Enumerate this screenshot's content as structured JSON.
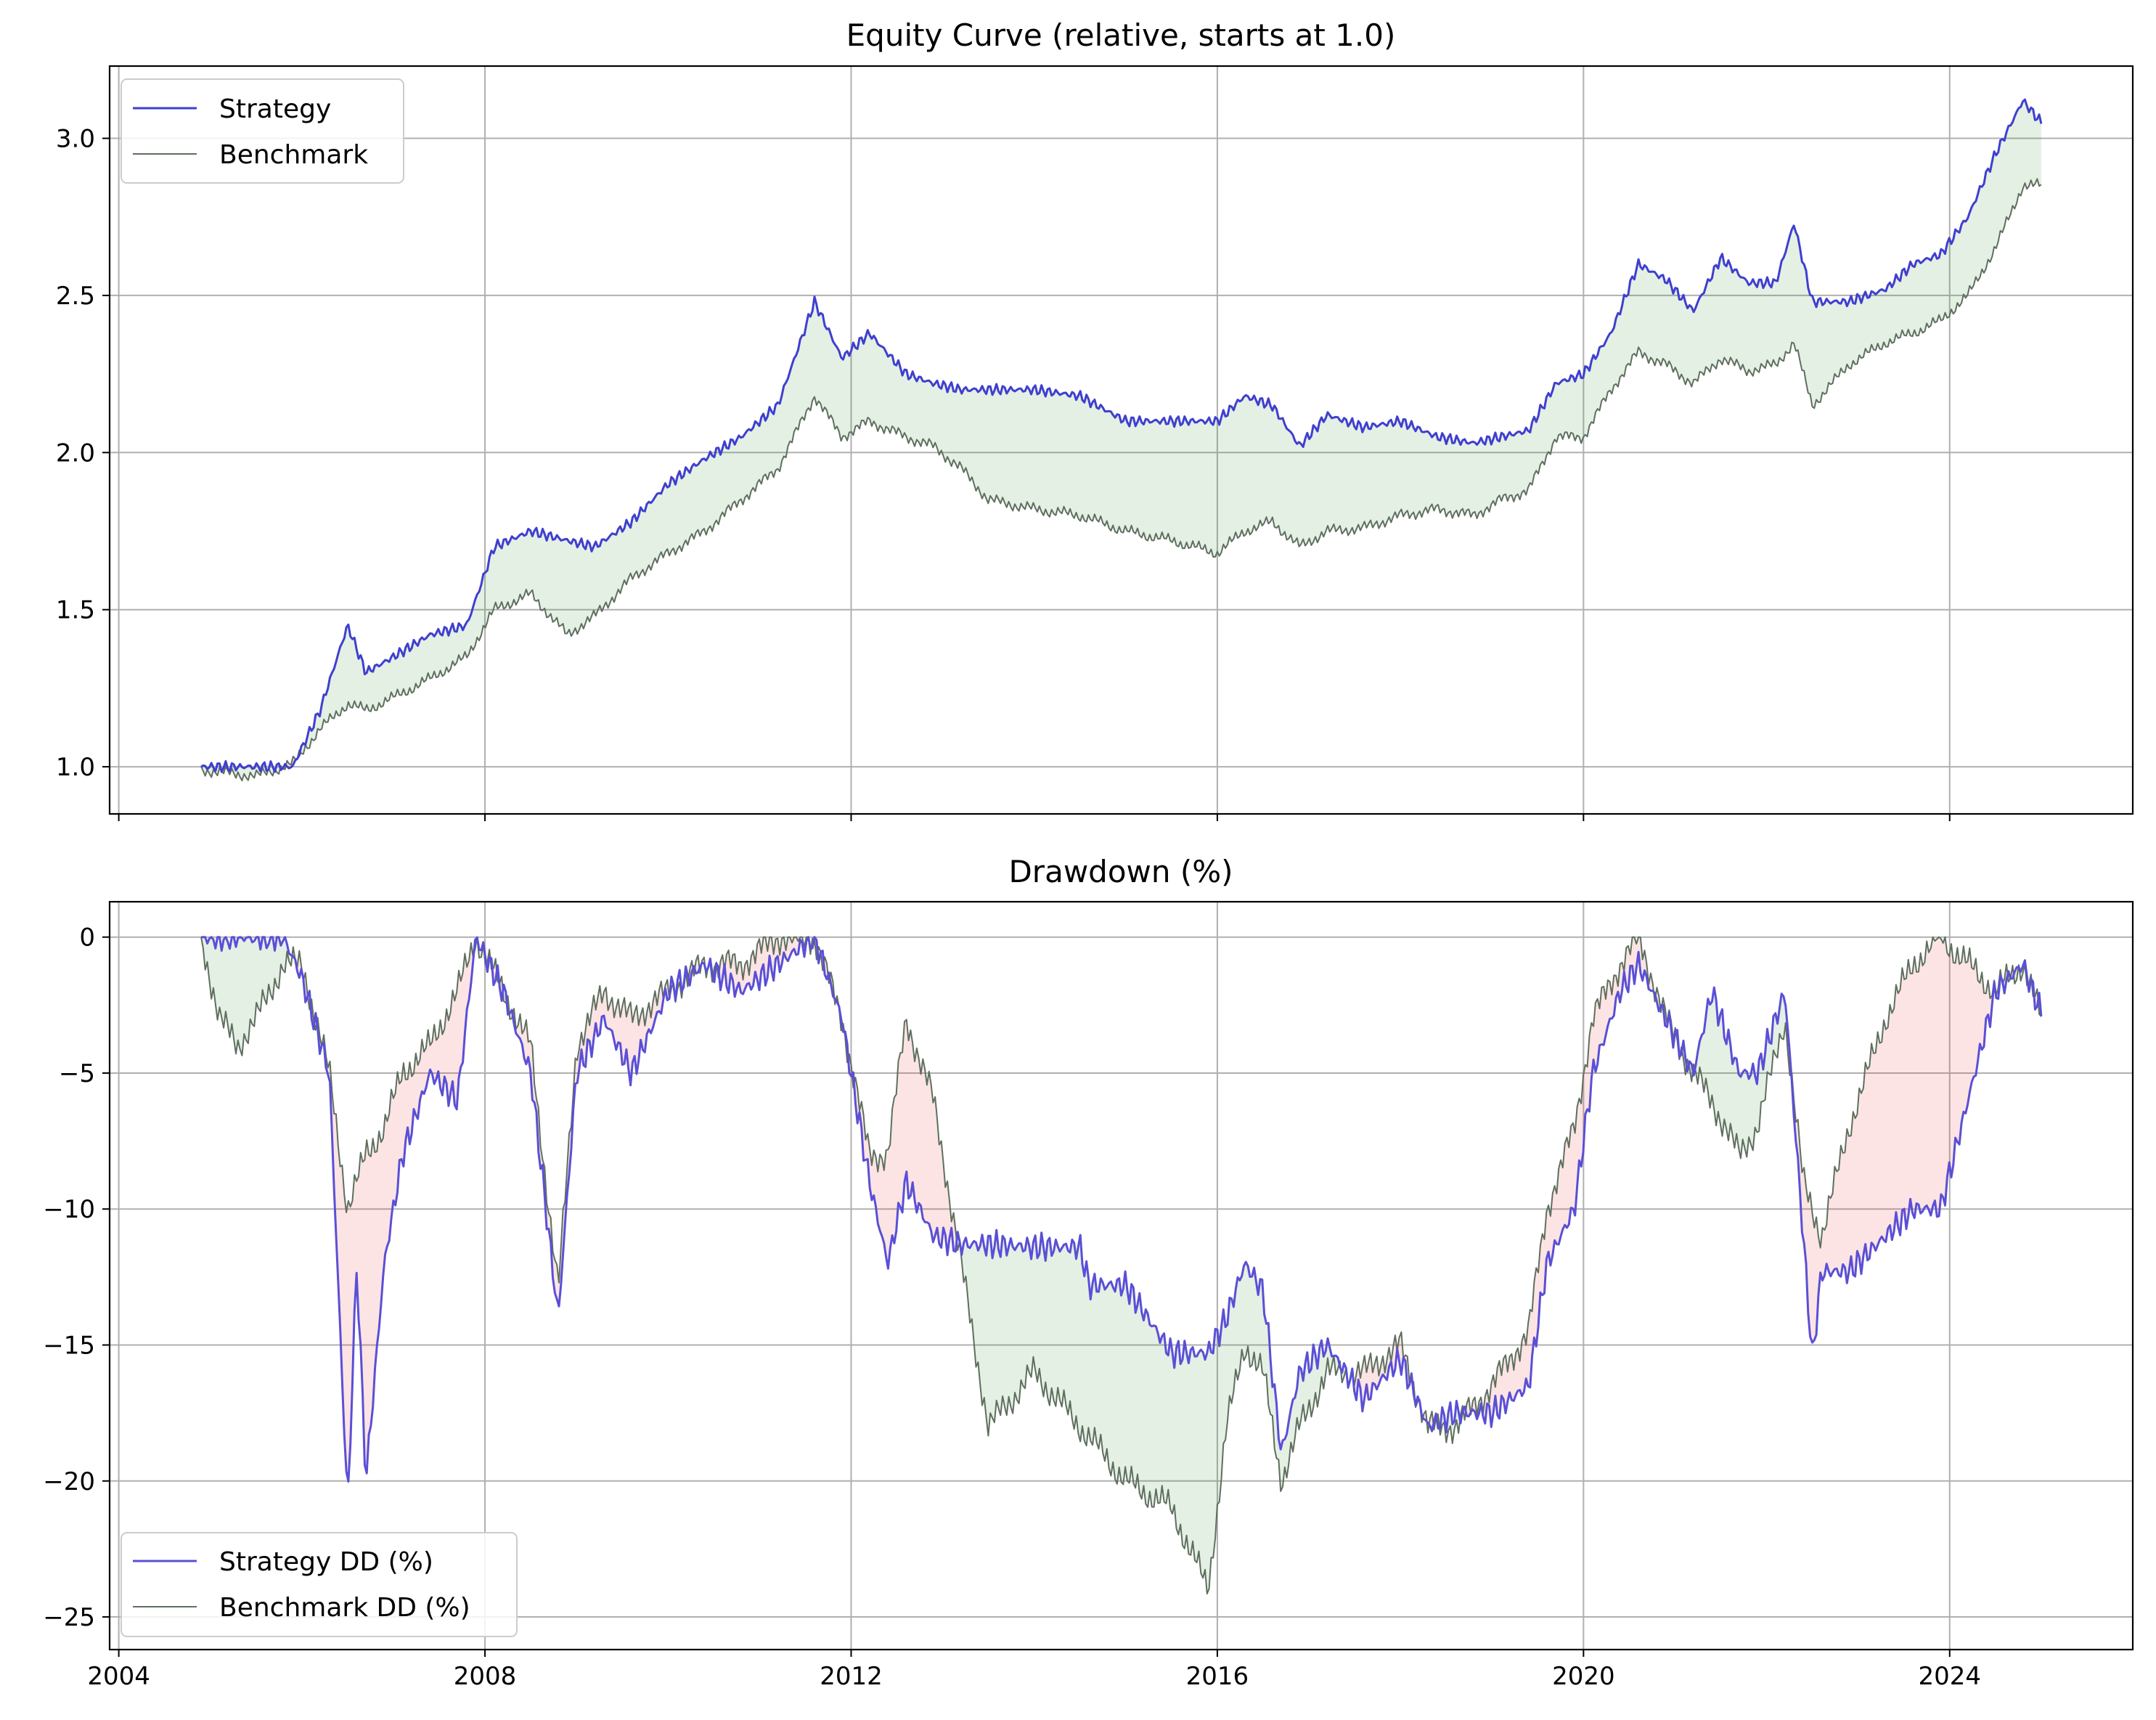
{
  "chart_data": [
    {
      "type": "line",
      "title": "Equity Curve (relative, starts at 1.0)",
      "xlim": [
        2003.9,
        2026.0
      ],
      "ylim": [
        0.85,
        3.23
      ],
      "grid": true,
      "legend_position": "top-left",
      "x_ticks": [
        2004,
        2008,
        2012,
        2016,
        2020,
        2024
      ],
      "y_ticks": [
        1.0,
        1.5,
        2.0,
        2.5,
        3.0
      ],
      "y_tick_labels": [
        "1.0",
        "1.5",
        "2.0",
        "2.5",
        "3.0"
      ],
      "series": [
        {
          "name": "Strategy",
          "color": "#3f3fcf",
          "x": [
            2004.9,
            2005.5,
            2005.9,
            2006.2,
            2006.5,
            2006.7,
            2007.0,
            2007.4,
            2007.8,
            2008.1,
            2008.5,
            2008.9,
            2009.2,
            2009.6,
            2010.0,
            2010.4,
            2010.8,
            2011.2,
            2011.6,
            2011.9,
            2012.2,
            2012.6,
            2012.9,
            2013.2,
            2013.5,
            2014.0,
            2014.5,
            2015.0,
            2015.5,
            2016.0,
            2016.3,
            2016.6,
            2016.9,
            2017.2,
            2017.6,
            2018.0,
            2018.4,
            2018.8,
            2019.1,
            2019.4,
            2019.7,
            2020.0,
            2020.3,
            2020.6,
            2020.9,
            2021.2,
            2021.5,
            2021.8,
            2022.1,
            2022.3,
            2022.5,
            2022.9,
            2023.3,
            2023.6,
            2023.9,
            2024.2,
            2024.5,
            2024.8,
            2025.0
          ],
          "y": [
            1.0,
            1.0,
            1.0,
            1.18,
            1.45,
            1.3,
            1.35,
            1.42,
            1.45,
            1.7,
            1.75,
            1.72,
            1.7,
            1.78,
            1.9,
            1.98,
            2.05,
            2.15,
            2.48,
            2.3,
            2.38,
            2.25,
            2.22,
            2.2,
            2.2,
            2.2,
            2.18,
            2.1,
            2.1,
            2.1,
            2.18,
            2.15,
            2.02,
            2.12,
            2.08,
            2.1,
            2.05,
            2.03,
            2.05,
            2.07,
            2.22,
            2.25,
            2.38,
            2.6,
            2.55,
            2.45,
            2.62,
            2.54,
            2.54,
            2.73,
            2.48,
            2.48,
            2.52,
            2.6,
            2.63,
            2.75,
            2.95,
            3.12,
            3.05
          ]
        },
        {
          "name": "Benchmark",
          "color": "#5f6f5f",
          "x": [
            2004.9,
            2005.5,
            2005.9,
            2006.2,
            2006.5,
            2006.7,
            2007.0,
            2007.4,
            2007.8,
            2008.1,
            2008.5,
            2008.9,
            2009.2,
            2009.6,
            2010.0,
            2010.4,
            2010.8,
            2011.2,
            2011.6,
            2011.9,
            2012.2,
            2012.6,
            2012.9,
            2013.2,
            2013.5,
            2014.0,
            2014.5,
            2015.0,
            2015.5,
            2016.0,
            2016.3,
            2016.6,
            2016.9,
            2017.2,
            2017.6,
            2018.0,
            2018.4,
            2018.8,
            2019.1,
            2019.4,
            2019.7,
            2020.0,
            2020.3,
            2020.6,
            2020.9,
            2021.2,
            2021.5,
            2021.8,
            2022.1,
            2022.3,
            2022.5,
            2022.9,
            2023.3,
            2023.6,
            2023.9,
            2024.2,
            2024.5,
            2024.8,
            2025.0
          ],
          "y": [
            0.99,
            0.97,
            1.01,
            1.12,
            1.2,
            1.18,
            1.22,
            1.28,
            1.35,
            1.5,
            1.55,
            1.42,
            1.48,
            1.6,
            1.68,
            1.75,
            1.85,
            1.95,
            2.18,
            2.05,
            2.1,
            2.05,
            2.02,
            1.95,
            1.85,
            1.82,
            1.8,
            1.75,
            1.72,
            1.68,
            1.75,
            1.78,
            1.7,
            1.75,
            1.76,
            1.8,
            1.82,
            1.8,
            1.85,
            1.88,
            2.05,
            2.05,
            2.2,
            2.32,
            2.28,
            2.22,
            2.3,
            2.26,
            2.28,
            2.35,
            2.15,
            2.28,
            2.35,
            2.38,
            2.42,
            2.5,
            2.65,
            2.85,
            2.85
          ]
        }
      ]
    },
    {
      "type": "line",
      "title": "Drawdown (%)",
      "xlim": [
        2003.9,
        2026.0
      ],
      "ylim": [
        -26.2,
        1.3
      ],
      "grid": true,
      "legend_position": "bottom-left",
      "x_ticks": [
        2004,
        2008,
        2012,
        2016,
        2020,
        2024
      ],
      "x_tick_labels": [
        "2004",
        "2008",
        "2012",
        "2016",
        "2020",
        "2024"
      ],
      "y_ticks": [
        0,
        -5,
        -10,
        -15,
        -20,
        -25
      ],
      "y_tick_labels": [
        "0",
        "−5",
        "−10",
        "−15",
        "−20",
        "−25"
      ],
      "series": [
        {
          "name": "Strategy DD (%)",
          "color": "#5a4fd6",
          "x": [
            2004.9,
            2005.8,
            2006.0,
            2006.3,
            2006.5,
            2006.6,
            2006.7,
            2006.9,
            2007.1,
            2007.4,
            2007.7,
            2007.9,
            2008.2,
            2008.5,
            2008.8,
            2009.0,
            2009.3,
            2009.6,
            2010.0,
            2010.4,
            2010.8,
            2011.2,
            2011.6,
            2011.9,
            2012.2,
            2012.4,
            2012.6,
            2012.9,
            2013.2,
            2013.5,
            2014.0,
            2014.5,
            2014.6,
            2015.0,
            2015.5,
            2015.9,
            2016.1,
            2016.3,
            2016.5,
            2016.7,
            2016.9,
            2017.2,
            2017.6,
            2018.0,
            2018.3,
            2018.6,
            2019.0,
            2019.4,
            2019.6,
            2019.9,
            2020.1,
            2020.4,
            2020.6,
            2020.9,
            2021.2,
            2021.4,
            2021.7,
            2021.9,
            2022.2,
            2022.4,
            2022.5,
            2022.6,
            2022.9,
            2023.3,
            2023.6,
            2023.9,
            2024.2,
            2024.5,
            2024.8,
            2025.0
          ],
          "y": [
            0,
            0,
            -1.5,
            -5,
            -21,
            -12,
            -20,
            -12,
            -8,
            -5,
            -6,
            0,
            -2,
            -5,
            -14,
            -5,
            -3,
            -5,
            -2,
            -1,
            -2,
            -1,
            0,
            -3,
            -9,
            -12,
            -9,
            -11,
            -11.3,
            -11.3,
            -11.4,
            -11.4,
            -12.8,
            -12.8,
            -15.3,
            -15.3,
            -14,
            -12,
            -13,
            -19,
            -16,
            -15,
            -17,
            -15.5,
            -18,
            -17.5,
            -17.5,
            -16.5,
            -12,
            -10,
            -5,
            -2,
            -1,
            -3,
            -5,
            -2,
            -5,
            -5,
            -2,
            -11,
            -15.5,
            -12.3,
            -12.3,
            -11,
            -10,
            -10,
            -6,
            -2,
            -1,
            -2.8
          ]
        },
        {
          "name": "Benchmark DD (%)",
          "color": "#5f6f5f",
          "x": [
            2004.9,
            2005.1,
            2005.3,
            2005.5,
            2005.8,
            2006.0,
            2006.3,
            2006.5,
            2006.7,
            2006.9,
            2007.1,
            2007.4,
            2007.7,
            2007.9,
            2008.2,
            2008.5,
            2008.8,
            2009.0,
            2009.3,
            2009.6,
            2010.0,
            2010.4,
            2010.8,
            2011.2,
            2011.6,
            2011.9,
            2012.2,
            2012.4,
            2012.6,
            2012.9,
            2013.2,
            2013.5,
            2014.0,
            2014.5,
            2015.0,
            2015.5,
            2015.9,
            2016.1,
            2016.3,
            2016.5,
            2016.7,
            2016.9,
            2017.2,
            2017.6,
            2018.0,
            2018.3,
            2018.6,
            2019.0,
            2019.4,
            2019.6,
            2019.9,
            2020.1,
            2020.4,
            2020.6,
            2020.9,
            2021.2,
            2021.4,
            2021.7,
            2021.9,
            2022.2,
            2022.4,
            2022.6,
            2022.9,
            2023.3,
            2023.6,
            2023.9,
            2024.2,
            2024.5,
            2024.8,
            2025.0
          ],
          "y": [
            0,
            -3,
            -4,
            -3,
            -1,
            -1,
            -5,
            -10,
            -8,
            -7,
            -5,
            -4,
            -2,
            0,
            -2,
            -4,
            -13,
            -4,
            -2,
            -3,
            -2,
            -1,
            -1,
            0,
            0,
            -3,
            -8,
            -8,
            -3,
            -6,
            -12,
            -18,
            -16,
            -18,
            -20,
            -21,
            -24,
            -18,
            -15,
            -16,
            -20,
            -18,
            -16,
            -16,
            -15,
            -18,
            -18,
            -16.5,
            -14.5,
            -10,
            -7,
            -3,
            -1,
            0,
            -3,
            -5,
            -6,
            -8,
            -7,
            -3,
            -9,
            -11,
            -7,
            -3,
            -1,
            0,
            -1,
            -2,
            -1,
            -3
          ]
        }
      ]
    }
  ]
}
